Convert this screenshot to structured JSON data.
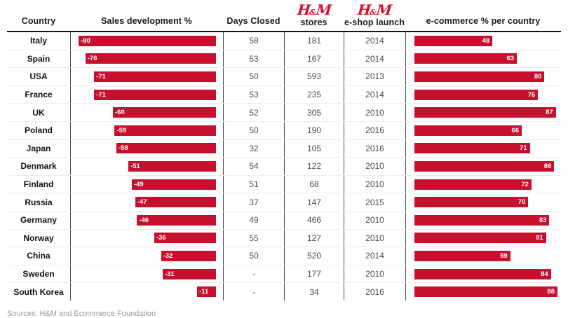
{
  "header": {
    "country": "Country",
    "sales": "Sales development %",
    "days": "Days Closed",
    "stores_label": "stores",
    "eshop_label": "e-shop launch",
    "ecommerce": "e-commerce % per country"
  },
  "hm_logo": {
    "h": "H",
    "amp": "&",
    "m": "M"
  },
  "footer": {
    "sources": "Sources: H&M and Ecommerce Foundation"
  },
  "colors": {
    "bar": "#C8102E",
    "logo": "#D2122E",
    "header_text": "#1a1a1a",
    "number_text": "#4d4d4d",
    "divider": "#4a4a4a",
    "row_line": "#ededed",
    "source_text": "#9a9a9a"
  },
  "rows": [
    {
      "country": "Italy",
      "sales": -80,
      "days": "58",
      "stores": "181",
      "launch": "2014",
      "ecom": 48
    },
    {
      "country": "Spain",
      "sales": -76,
      "days": "53",
      "stores": "167",
      "launch": "2014",
      "ecom": 63
    },
    {
      "country": "USA",
      "sales": -71,
      "days": "50",
      "stores": "593",
      "launch": "2013",
      "ecom": 80
    },
    {
      "country": "France",
      "sales": -71,
      "days": "53",
      "stores": "235",
      "launch": "2014",
      "ecom": 76
    },
    {
      "country": "UK",
      "sales": -60,
      "days": "52",
      "stores": "305",
      "launch": "2010",
      "ecom": 87
    },
    {
      "country": "Poland",
      "sales": -59,
      "days": "50",
      "stores": "190",
      "launch": "2016",
      "ecom": 66
    },
    {
      "country": "Japan",
      "sales": -58,
      "days": "32",
      "stores": "105",
      "launch": "2016",
      "ecom": 71
    },
    {
      "country": "Denmark",
      "sales": -51,
      "days": "54",
      "stores": "122",
      "launch": "2010",
      "ecom": 86
    },
    {
      "country": "Finland",
      "sales": -49,
      "days": "51",
      "stores": "68",
      "launch": "2010",
      "ecom": 72
    },
    {
      "country": "Russia",
      "sales": -47,
      "days": "37",
      "stores": "147",
      "launch": "2015",
      "ecom": 70
    },
    {
      "country": "Germany",
      "sales": -46,
      "days": "49",
      "stores": "466",
      "launch": "2010",
      "ecom": 83
    },
    {
      "country": "Norway",
      "sales": -36,
      "days": "55",
      "stores": "127",
      "launch": "2010",
      "ecom": 81
    },
    {
      "country": "China",
      "sales": -32,
      "days": "50",
      "stores": "520",
      "launch": "2014",
      "ecom": 59
    },
    {
      "country": "Sweden",
      "sales": -31,
      "days": "-",
      "stores": "177",
      "launch": "2010",
      "ecom": 84
    },
    {
      "country": "South Korea",
      "sales": -11,
      "days": "-",
      "stores": "34",
      "launch": "2016",
      "ecom": 88
    }
  ],
  "chart_data": [
    {
      "type": "bar",
      "orientation": "horizontal",
      "title": "Sales development %",
      "categories": [
        "Italy",
        "Spain",
        "USA",
        "France",
        "UK",
        "Poland",
        "Japan",
        "Denmark",
        "Finland",
        "Russia",
        "Germany",
        "Norway",
        "China",
        "Sweden",
        "South Korea"
      ],
      "values": [
        -80,
        -76,
        -71,
        -71,
        -60,
        -59,
        -58,
        -51,
        -49,
        -47,
        -46,
        -36,
        -32,
        -31,
        -11
      ],
      "xlim": [
        -80,
        0
      ],
      "bar_color": "#C8102E",
      "value_labels": "inside-start",
      "bars_aligned": "right",
      "grid": false,
      "legend": false
    },
    {
      "type": "bar",
      "orientation": "horizontal",
      "title": "e-commerce % per country",
      "categories": [
        "Italy",
        "Spain",
        "USA",
        "France",
        "UK",
        "Poland",
        "Japan",
        "Denmark",
        "Finland",
        "Russia",
        "Germany",
        "Norway",
        "China",
        "Sweden",
        "South Korea"
      ],
      "values": [
        48,
        63,
        80,
        76,
        87,
        66,
        71,
        86,
        72,
        70,
        83,
        81,
        59,
        84,
        88
      ],
      "xlim": [
        0,
        88
      ],
      "bar_color": "#C8102E",
      "value_labels": "inside-end",
      "bars_aligned": "left",
      "grid": false,
      "legend": false
    },
    {
      "type": "table",
      "columns": [
        "Country",
        "Days Closed",
        "H&M stores",
        "H&M e-shop launch"
      ],
      "rows": [
        [
          "Italy",
          "58",
          "181",
          "2014"
        ],
        [
          "Spain",
          "53",
          "167",
          "2014"
        ],
        [
          "USA",
          "50",
          "593",
          "2013"
        ],
        [
          "France",
          "53",
          "235",
          "2014"
        ],
        [
          "UK",
          "52",
          "305",
          "2010"
        ],
        [
          "Poland",
          "50",
          "190",
          "2016"
        ],
        [
          "Japan",
          "32",
          "105",
          "2016"
        ],
        [
          "Denmark",
          "54",
          "122",
          "2010"
        ],
        [
          "Finland",
          "51",
          "68",
          "2010"
        ],
        [
          "Russia",
          "37",
          "147",
          "2015"
        ],
        [
          "Germany",
          "49",
          "466",
          "2010"
        ],
        [
          "Norway",
          "55",
          "127",
          "2010"
        ],
        [
          "China",
          "50",
          "520",
          "2014"
        ],
        [
          "Sweden",
          "-",
          "177",
          "2010"
        ],
        [
          "South Korea",
          "-",
          "34",
          "2016"
        ]
      ]
    }
  ]
}
